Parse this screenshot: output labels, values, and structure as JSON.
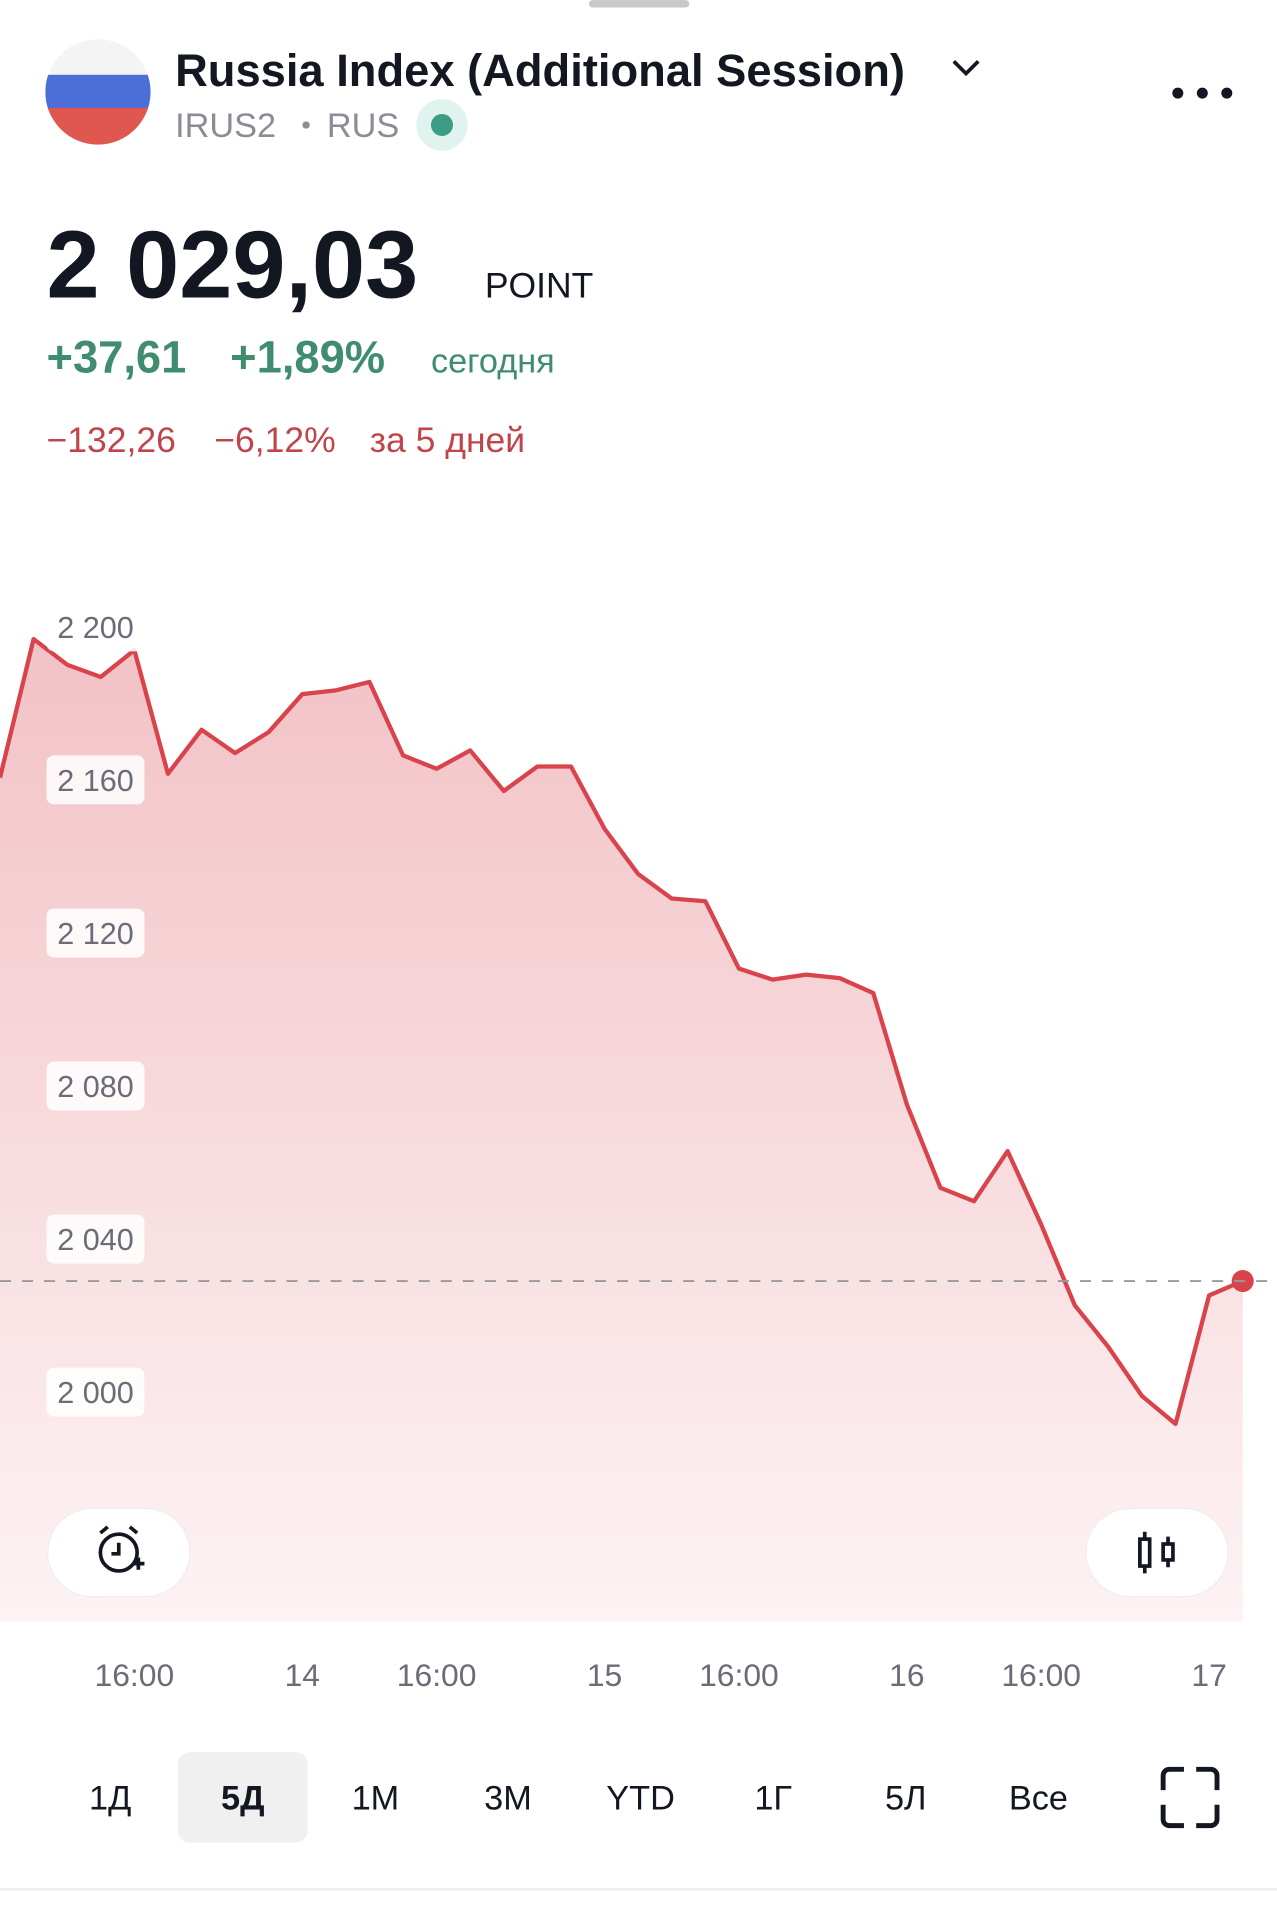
{
  "header": {
    "title": "Russia Index (Additional Session)",
    "ticker": "IRUS2",
    "exchange": "RUS"
  },
  "quote": {
    "price": "2 029,03",
    "unit": "POINT",
    "change_today": "+37,61",
    "change_today_pct": "+1,89%",
    "today_label": "сегодня",
    "change_period": "−132,26",
    "change_period_pct": "−6,12%",
    "period_label": "за 5 дней"
  },
  "chart_data": {
    "type": "area",
    "color": "#d9434b",
    "x": [
      0,
      1,
      2,
      3,
      4,
      5,
      6,
      7,
      8,
      9,
      10,
      11,
      12,
      13,
      14,
      15,
      16,
      17,
      18,
      19,
      20,
      21,
      22,
      23,
      24,
      25,
      26,
      27,
      28,
      29,
      30,
      31,
      32,
      33,
      34,
      35,
      36,
      37
    ],
    "series": [
      {
        "name": "IRUS2",
        "color": "#d9434b",
        "values": [
          2160.6,
          2196.8,
          2190.1,
          2186.9,
          2193.9,
          2161.6,
          2173.1,
          2167.0,
          2172.5,
          2182.4,
          2183.4,
          2185.6,
          2166.4,
          2162.9,
          2167.7,
          2157.1,
          2163.5,
          2163.5,
          2147.2,
          2135.4,
          2129.0,
          2128.3,
          2110.7,
          2107.8,
          2109.1,
          2108.2,
          2104.3,
          2075.2,
          2053.4,
          2049.9,
          2063.0,
          2043.8,
          2022.7,
          2011.8,
          1999.0,
          1991.7,
          2025.3,
          2029.03
        ]
      }
    ],
    "reference_line": 2029.03,
    "xlim": [
      0,
      37
    ],
    "xticks": [
      {
        "value": 4,
        "label": "16:00"
      },
      {
        "value": 9,
        "label": "14"
      },
      {
        "value": 13,
        "label": "16:00"
      },
      {
        "value": 18,
        "label": "15"
      },
      {
        "value": 22,
        "label": "16:00"
      },
      {
        "value": 27,
        "label": "16"
      },
      {
        "value": 31,
        "label": "16:00"
      },
      {
        "value": 36,
        "label": "17"
      }
    ],
    "ylim": [
      1940,
      2215
    ],
    "yticks": [
      {
        "value": 2000,
        "label": "2 000"
      },
      {
        "value": 2040,
        "label": "2 040"
      },
      {
        "value": 2080,
        "label": "2 080"
      },
      {
        "value": 2120,
        "label": "2 120"
      },
      {
        "value": 2160,
        "label": "2 160"
      },
      {
        "value": 2200,
        "label": "2 200"
      }
    ]
  },
  "ranges": [
    {
      "label": "1Д",
      "selected": false
    },
    {
      "label": "5Д",
      "selected": true
    },
    {
      "label": "1М",
      "selected": false
    },
    {
      "label": "3М",
      "selected": false
    },
    {
      "label": "YTD",
      "selected": false
    },
    {
      "label": "1Г",
      "selected": false
    },
    {
      "label": "5Л",
      "selected": false
    },
    {
      "label": "Все",
      "selected": false
    }
  ]
}
